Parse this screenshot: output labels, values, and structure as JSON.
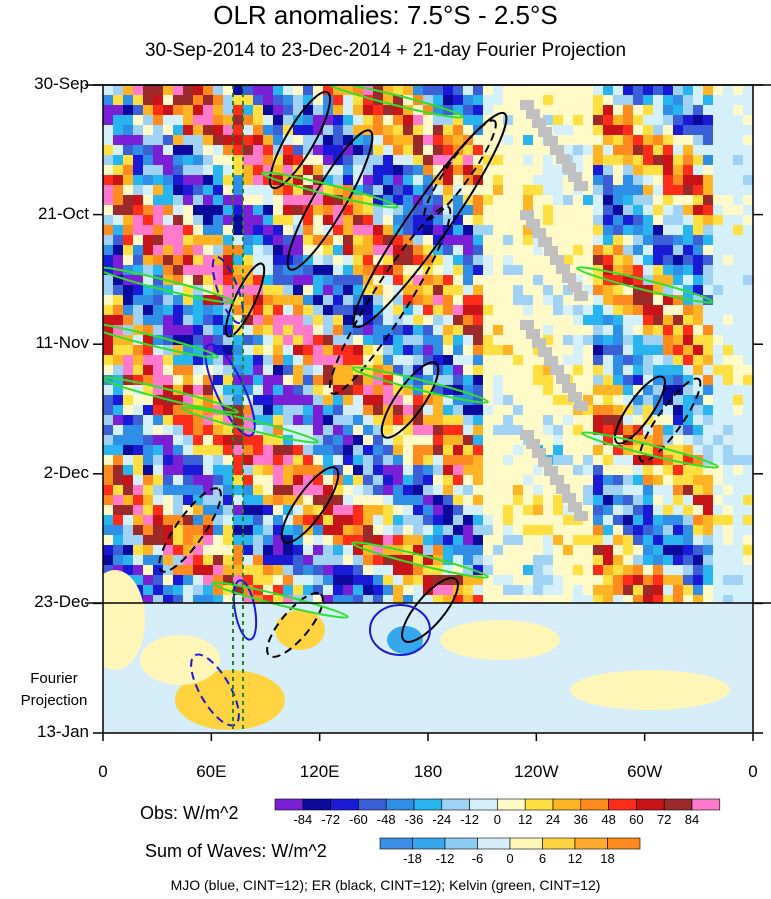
{
  "chart_data": {
    "type": "heatmap",
    "title": "OLR anomalies: 7.5°S - 2.5°S",
    "subtitle": "30-Sep-2014 to 23-Dec-2014 + 21-day Fourier Projection",
    "y_ticks": [
      "30-Sep",
      "21-Oct",
      "11-Nov",
      "2-Dec",
      "23-Dec",
      "13-Jan"
    ],
    "y_note": "Fourier Projection",
    "x_ticks": [
      "0",
      "60E",
      "120E",
      "180",
      "120W",
      "60W",
      "0"
    ],
    "obs_legend": {
      "label": "Obs: W/m^2",
      "levels": [
        "-84",
        "-72",
        "-60",
        "-48",
        "-36",
        "-24",
        "-12",
        "0",
        "12",
        "24",
        "36",
        "48",
        "60",
        "72",
        "84"
      ],
      "colors": [
        "#7a1fd6",
        "#0a0a9c",
        "#1a1ad6",
        "#3b5fd6",
        "#2f8fe6",
        "#28b4ee",
        "#9fd2f5",
        "#d4f0fb",
        "#fffac8",
        "#ffe040",
        "#ffb424",
        "#ff8a1e",
        "#ff2c1a",
        "#c81418",
        "#9c2a2a",
        "#ff7acc"
      ]
    },
    "waves_legend": {
      "label": "Sum of Waves: W/m^2",
      "levels": [
        "-18",
        "-12",
        "-6",
        "0",
        "6",
        "12",
        "18"
      ],
      "colors": [
        "#3c8fe6",
        "#37a8ee",
        "#8ccbf3",
        "#d6eefa",
        "#fff6b8",
        "#ffd440",
        "#ffaa2c",
        "#ff8a1e"
      ]
    },
    "footnote": "MJO (blue, CINT=12); ER (black, CINT=12); Kelvin (green, CINT=12)"
  }
}
